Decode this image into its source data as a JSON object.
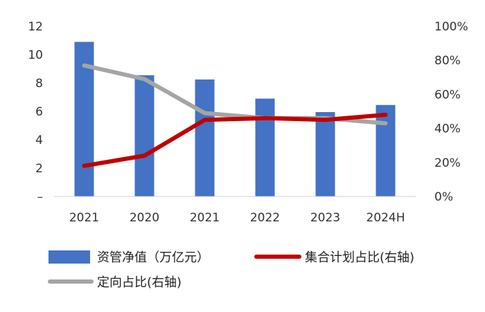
{
  "chart_data": {
    "type": "bar",
    "categories": [
      "2021",
      "2020",
      "2021",
      "2022",
      "2023",
      "2024H"
    ],
    "left_axis": {
      "ticks": [
        "–",
        "2",
        "4",
        "6",
        "8",
        "10",
        "12"
      ],
      "ylim": [
        0,
        12
      ]
    },
    "right_axis": {
      "ticks": [
        "0%",
        "20%",
        "40%",
        "60%",
        "80%",
        "100%"
      ],
      "ylim": [
        0,
        100
      ]
    },
    "series": [
      {
        "name": "资管净值（万亿元）",
        "kind": "bar",
        "axis": "left",
        "color": "#4472C4",
        "values": [
          10.9,
          8.55,
          8.25,
          6.9,
          5.95,
          6.45
        ]
      },
      {
        "name": "集合计划占比(右轴)",
        "kind": "line",
        "axis": "right",
        "color": "#C00000",
        "values": [
          18,
          24,
          45,
          46,
          45,
          48
        ]
      },
      {
        "name": "定向占比(右轴)",
        "kind": "line",
        "axis": "right",
        "color": "#A5A5A5",
        "values": [
          77,
          69,
          49,
          46,
          46,
          43
        ]
      }
    ],
    "grid": false,
    "legend_position": "bottom"
  }
}
